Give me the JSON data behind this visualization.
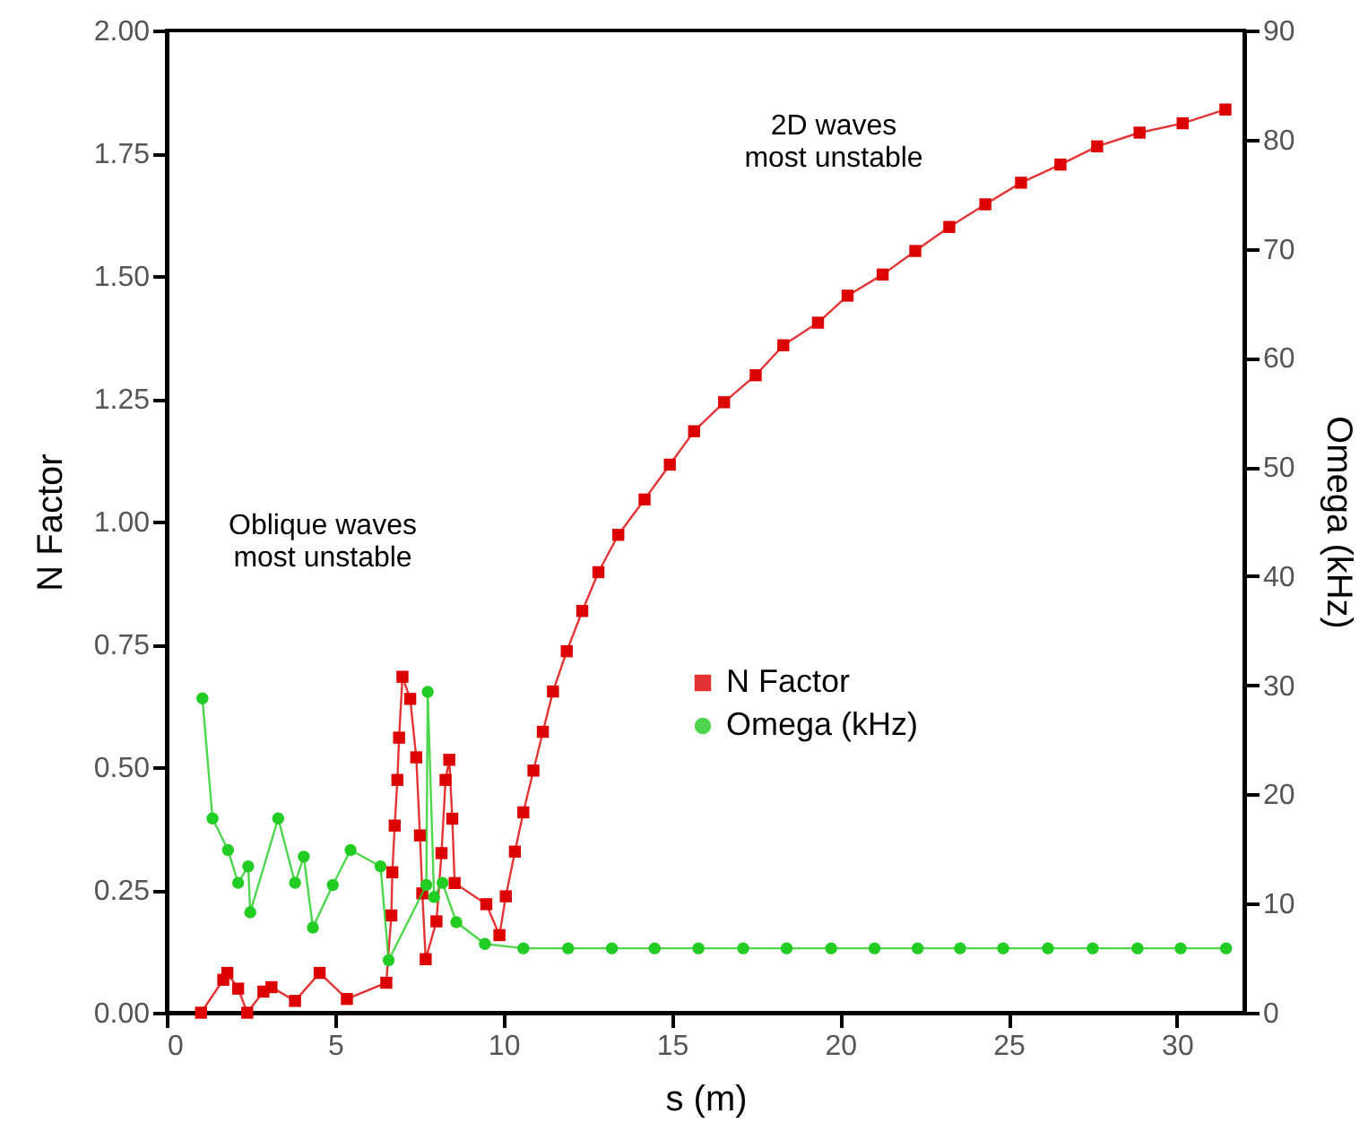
{
  "chart_data": {
    "type": "line",
    "xlabel": "s (m)",
    "ylabel": "N Factor",
    "y2label": "Omega (kHz)",
    "xlim": [
      0,
      32
    ],
    "xticks": [
      0,
      5,
      10,
      15,
      20,
      25,
      30
    ],
    "ylim": [
      0,
      2
    ],
    "yticks": [
      {
        "value": 0,
        "label": "0.00"
      },
      {
        "value": 0.25,
        "label": "0.25"
      },
      {
        "value": 0.5,
        "label": "0.50"
      },
      {
        "value": 0.75,
        "label": "0.75"
      },
      {
        "value": 1,
        "label": "1.00"
      },
      {
        "value": 1.25,
        "label": "1.25"
      },
      {
        "value": 1.5,
        "label": "1.50"
      },
      {
        "value": 1.75,
        "label": "1.75"
      },
      {
        "value": 2,
        "label": "2.00"
      }
    ],
    "y2lim": [
      0,
      90
    ],
    "y2ticks": [
      0,
      10,
      20,
      30,
      40,
      50,
      60,
      70,
      80,
      90
    ],
    "legend": "right",
    "grid": false,
    "annotations": [
      "Oblique waves\nmost unstable",
      "2D waves\nmost unstable"
    ],
    "series": [
      {
        "name": "N Factor",
        "color": "#dd0000",
        "marker": "square",
        "axis": "y",
        "x": [
          1.02,
          1.68,
          1.8,
          2.12,
          2.39,
          2.87,
          3.11,
          3.81,
          4.54,
          5.35,
          6.52,
          6.67,
          6.7,
          6.77,
          6.85,
          6.9,
          7.0,
          7.23,
          7.41,
          7.52,
          7.59,
          7.69,
          8.01,
          8.16,
          8.28,
          8.39,
          8.48,
          8.55,
          9.49,
          9.88,
          10.07,
          10.34,
          10.59,
          10.89,
          11.17,
          11.47,
          11.88,
          12.34,
          12.82,
          13.41,
          14.19,
          14.94,
          15.66,
          16.55,
          17.49,
          18.31,
          19.34,
          20.22,
          21.26,
          22.23,
          23.24,
          24.31,
          25.37,
          26.54,
          27.63,
          28.89,
          30.17,
          31.44
        ],
        "values": [
          0.0,
          0.067,
          0.081,
          0.049,
          0.0,
          0.043,
          0.052,
          0.024,
          0.081,
          0.028,
          0.061,
          0.198,
          0.286,
          0.381,
          0.474,
          0.56,
          0.684,
          0.639,
          0.52,
          0.361,
          0.243,
          0.109,
          0.186,
          0.325,
          0.474,
          0.515,
          0.395,
          0.264,
          0.221,
          0.158,
          0.237,
          0.328,
          0.408,
          0.493,
          0.572,
          0.654,
          0.736,
          0.818,
          0.897,
          0.973,
          1.045,
          1.116,
          1.184,
          1.243,
          1.298,
          1.359,
          1.405,
          1.46,
          1.503,
          1.551,
          1.6,
          1.646,
          1.69,
          1.727,
          1.764,
          1.792,
          1.811,
          1.839
        ]
      },
      {
        "name": "Omega (kHz)",
        "color": "#22cc22",
        "marker": "circle",
        "axis": "y2",
        "x": [
          1.06,
          1.36,
          1.82,
          2.12,
          2.42,
          2.48,
          3.31,
          3.81,
          4.07,
          4.34,
          4.93,
          5.46,
          6.35,
          6.59,
          7.71,
          7.75,
          7.94,
          8.19,
          8.6,
          9.45,
          10.59,
          11.92,
          13.22,
          14.49,
          15.79,
          17.12,
          18.41,
          19.73,
          21.02,
          22.3,
          23.56,
          24.84,
          26.17,
          27.5,
          28.83,
          30.11,
          31.46
        ],
        "values": [
          28.8,
          17.8,
          14.9,
          11.9,
          13.4,
          9.2,
          17.8,
          11.9,
          14.3,
          7.8,
          11.7,
          14.9,
          13.4,
          4.8,
          11.7,
          29.4,
          10.6,
          11.9,
          8.3,
          6.3,
          5.9,
          5.9,
          5.9,
          5.9,
          5.9,
          5.9,
          5.9,
          5.9,
          5.9,
          5.9,
          5.9,
          5.9,
          5.9,
          5.9,
          5.9,
          5.9,
          5.9
        ]
      }
    ]
  }
}
